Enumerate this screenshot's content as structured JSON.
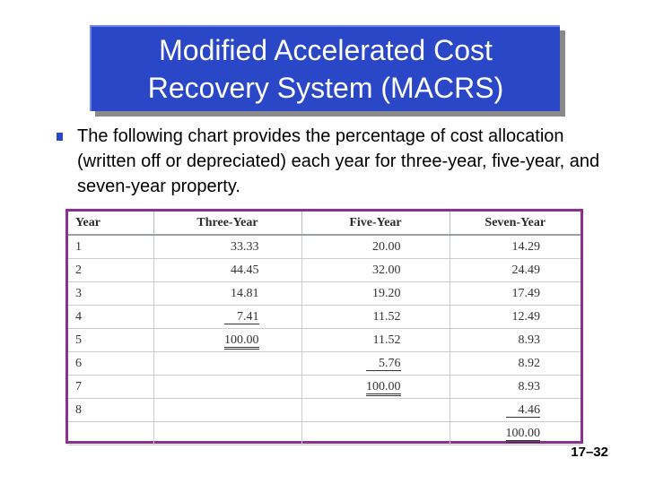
{
  "title": {
    "line1": "Modified Accelerated Cost",
    "line2": "Recovery System (MACRS)"
  },
  "bullet_text": "The following chart provides the percentage of cost allocation (written off or depreciated) each year for three-year, five-year, and seven-year property.",
  "colors": {
    "title_bg": "#2a47c7",
    "table_border": "#8e2f92",
    "bullet": "#2a47c7"
  },
  "table": {
    "headers": [
      "Year",
      "Three-Year",
      "Five-Year",
      "Seven-Year"
    ],
    "rows": [
      [
        "1",
        "33.33",
        "20.00",
        "14.29"
      ],
      [
        "2",
        "44.45",
        "32.00",
        "24.49"
      ],
      [
        "3",
        "14.81",
        "19.20",
        "17.49"
      ],
      [
        "4",
        "7.41",
        "11.52",
        "12.49"
      ],
      [
        "5",
        "100.00",
        "11.52",
        "8.93"
      ],
      [
        "6",
        "",
        "5.76",
        "8.92"
      ],
      [
        "7",
        "",
        "100.00",
        "8.93"
      ],
      [
        "8",
        "",
        "",
        "4.46"
      ],
      [
        "",
        "",
        "",
        "100.00"
      ]
    ]
  },
  "slide_number": "17–32"
}
